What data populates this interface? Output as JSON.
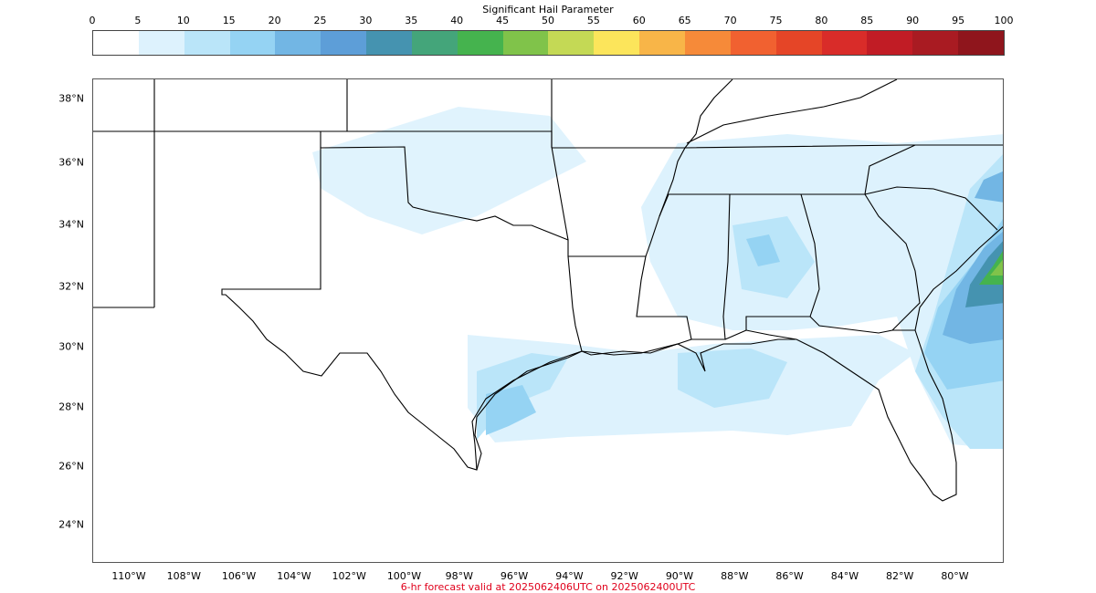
{
  "colorbar": {
    "title": "Significant Hail Parameter",
    "ticks": [
      "0",
      "5",
      "10",
      "15",
      "20",
      "25",
      "30",
      "35",
      "40",
      "45",
      "50",
      "55",
      "60",
      "65",
      "70",
      "75",
      "80",
      "85",
      "90",
      "95",
      "100"
    ],
    "colors": [
      "#ffffff",
      "#ddf2fd",
      "#bae5f9",
      "#95d3f3",
      "#72b6e4",
      "#5d9ed8",
      "#4593b0",
      "#44a57a",
      "#45b34e",
      "#80c34a",
      "#c4d955",
      "#fce55b",
      "#f8b548",
      "#f68a39",
      "#f16130",
      "#e54527",
      "#d92c29",
      "#c11c25",
      "#a91b22",
      "#8f151c"
    ]
  },
  "lat_labels": [
    "38°N",
    "36°N",
    "34°N",
    "32°N",
    "30°N",
    "28°N",
    "26°N",
    "24°N"
  ],
  "lon_labels": [
    "110°W",
    "108°W",
    "106°W",
    "104°W",
    "102°W",
    "100°W",
    "98°W",
    "96°W",
    "94°W",
    "92°W",
    "90°W",
    "88°W",
    "86°W",
    "84°W",
    "82°W",
    "80°W"
  ],
  "footer": "6-hr forecast valid at 2025062406UTC on 2025062400UTC"
}
